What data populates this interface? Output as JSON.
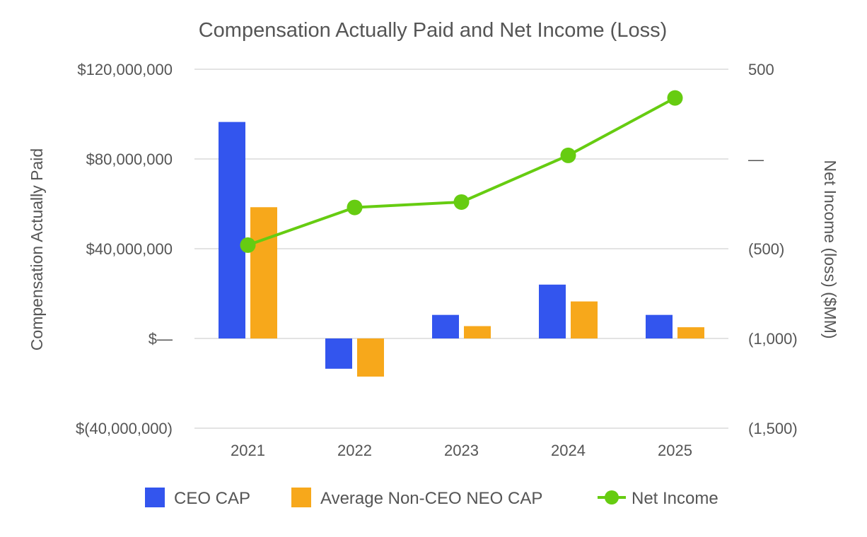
{
  "chart_data": {
    "type": "bar",
    "title": "Compensation Actually Paid and Net Income (Loss)",
    "categories": [
      "2021",
      "2022",
      "2023",
      "2024",
      "2025"
    ],
    "series": [
      {
        "name": "CEO CAP",
        "type": "bar",
        "axis": "left",
        "color": "#3355ee",
        "values": [
          96500000,
          -13500000,
          10500000,
          24000000,
          10500000
        ]
      },
      {
        "name": "Average Non-CEO NEO CAP",
        "type": "bar",
        "axis": "left",
        "color": "#f7a81b",
        "values": [
          58500000,
          -17000000,
          5500000,
          16500000,
          5000000
        ]
      },
      {
        "name": "Net Income",
        "type": "line",
        "axis": "right",
        "color": "#66cc11",
        "values": [
          -480,
          -270,
          -240,
          20,
          340
        ]
      }
    ],
    "y_left": {
      "label": "Compensation Actually Paid",
      "range": [
        -40000000,
        120000000
      ],
      "ticks": [
        {
          "value": 120000000,
          "label": "$120,000,000"
        },
        {
          "value": 80000000,
          "label": "$80,000,000"
        },
        {
          "value": 40000000,
          "label": "$40,000,000"
        },
        {
          "value": 0,
          "label": "$—"
        },
        {
          "value": -40000000,
          "label": "$(40,000,000)"
        }
      ]
    },
    "y_right": {
      "label": "Net Income (loss) ($MM)",
      "range": [
        -1500,
        500
      ],
      "ticks": [
        {
          "value": 500,
          "label": "500"
        },
        {
          "value": 0,
          "label": "—"
        },
        {
          "value": -500,
          "label": "(500)"
        },
        {
          "value": -1000,
          "label": "(1,000)"
        },
        {
          "value": -1500,
          "label": "(1,500)"
        }
      ]
    },
    "grid": true,
    "legend": "bottom"
  }
}
